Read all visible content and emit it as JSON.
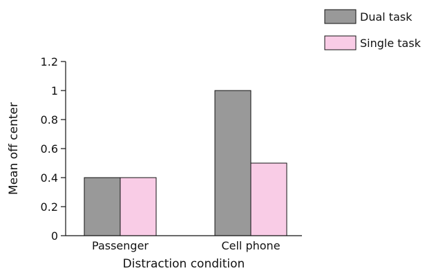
{
  "chart_data": {
    "type": "bar",
    "title": "",
    "xlabel": "Distraction condition",
    "ylabel": "Mean off center",
    "categories": [
      "Passenger",
      "Cell phone"
    ],
    "series": [
      {
        "name": "Dual task",
        "values": [
          0.4,
          1.0
        ],
        "color": "#999999"
      },
      {
        "name": "Single task",
        "values": [
          0.4,
          0.5
        ],
        "color": "#f9cce6"
      }
    ],
    "ylim": [
      0,
      1.2
    ],
    "yticks": [
      0,
      0.2,
      0.4,
      0.6,
      0.8,
      1,
      1.2
    ],
    "ytick_labels": [
      "0",
      "0.2",
      "0.4",
      "0.6",
      "0.8",
      "1",
      "1.2"
    ],
    "grid": false,
    "legend_position": "top-right"
  }
}
